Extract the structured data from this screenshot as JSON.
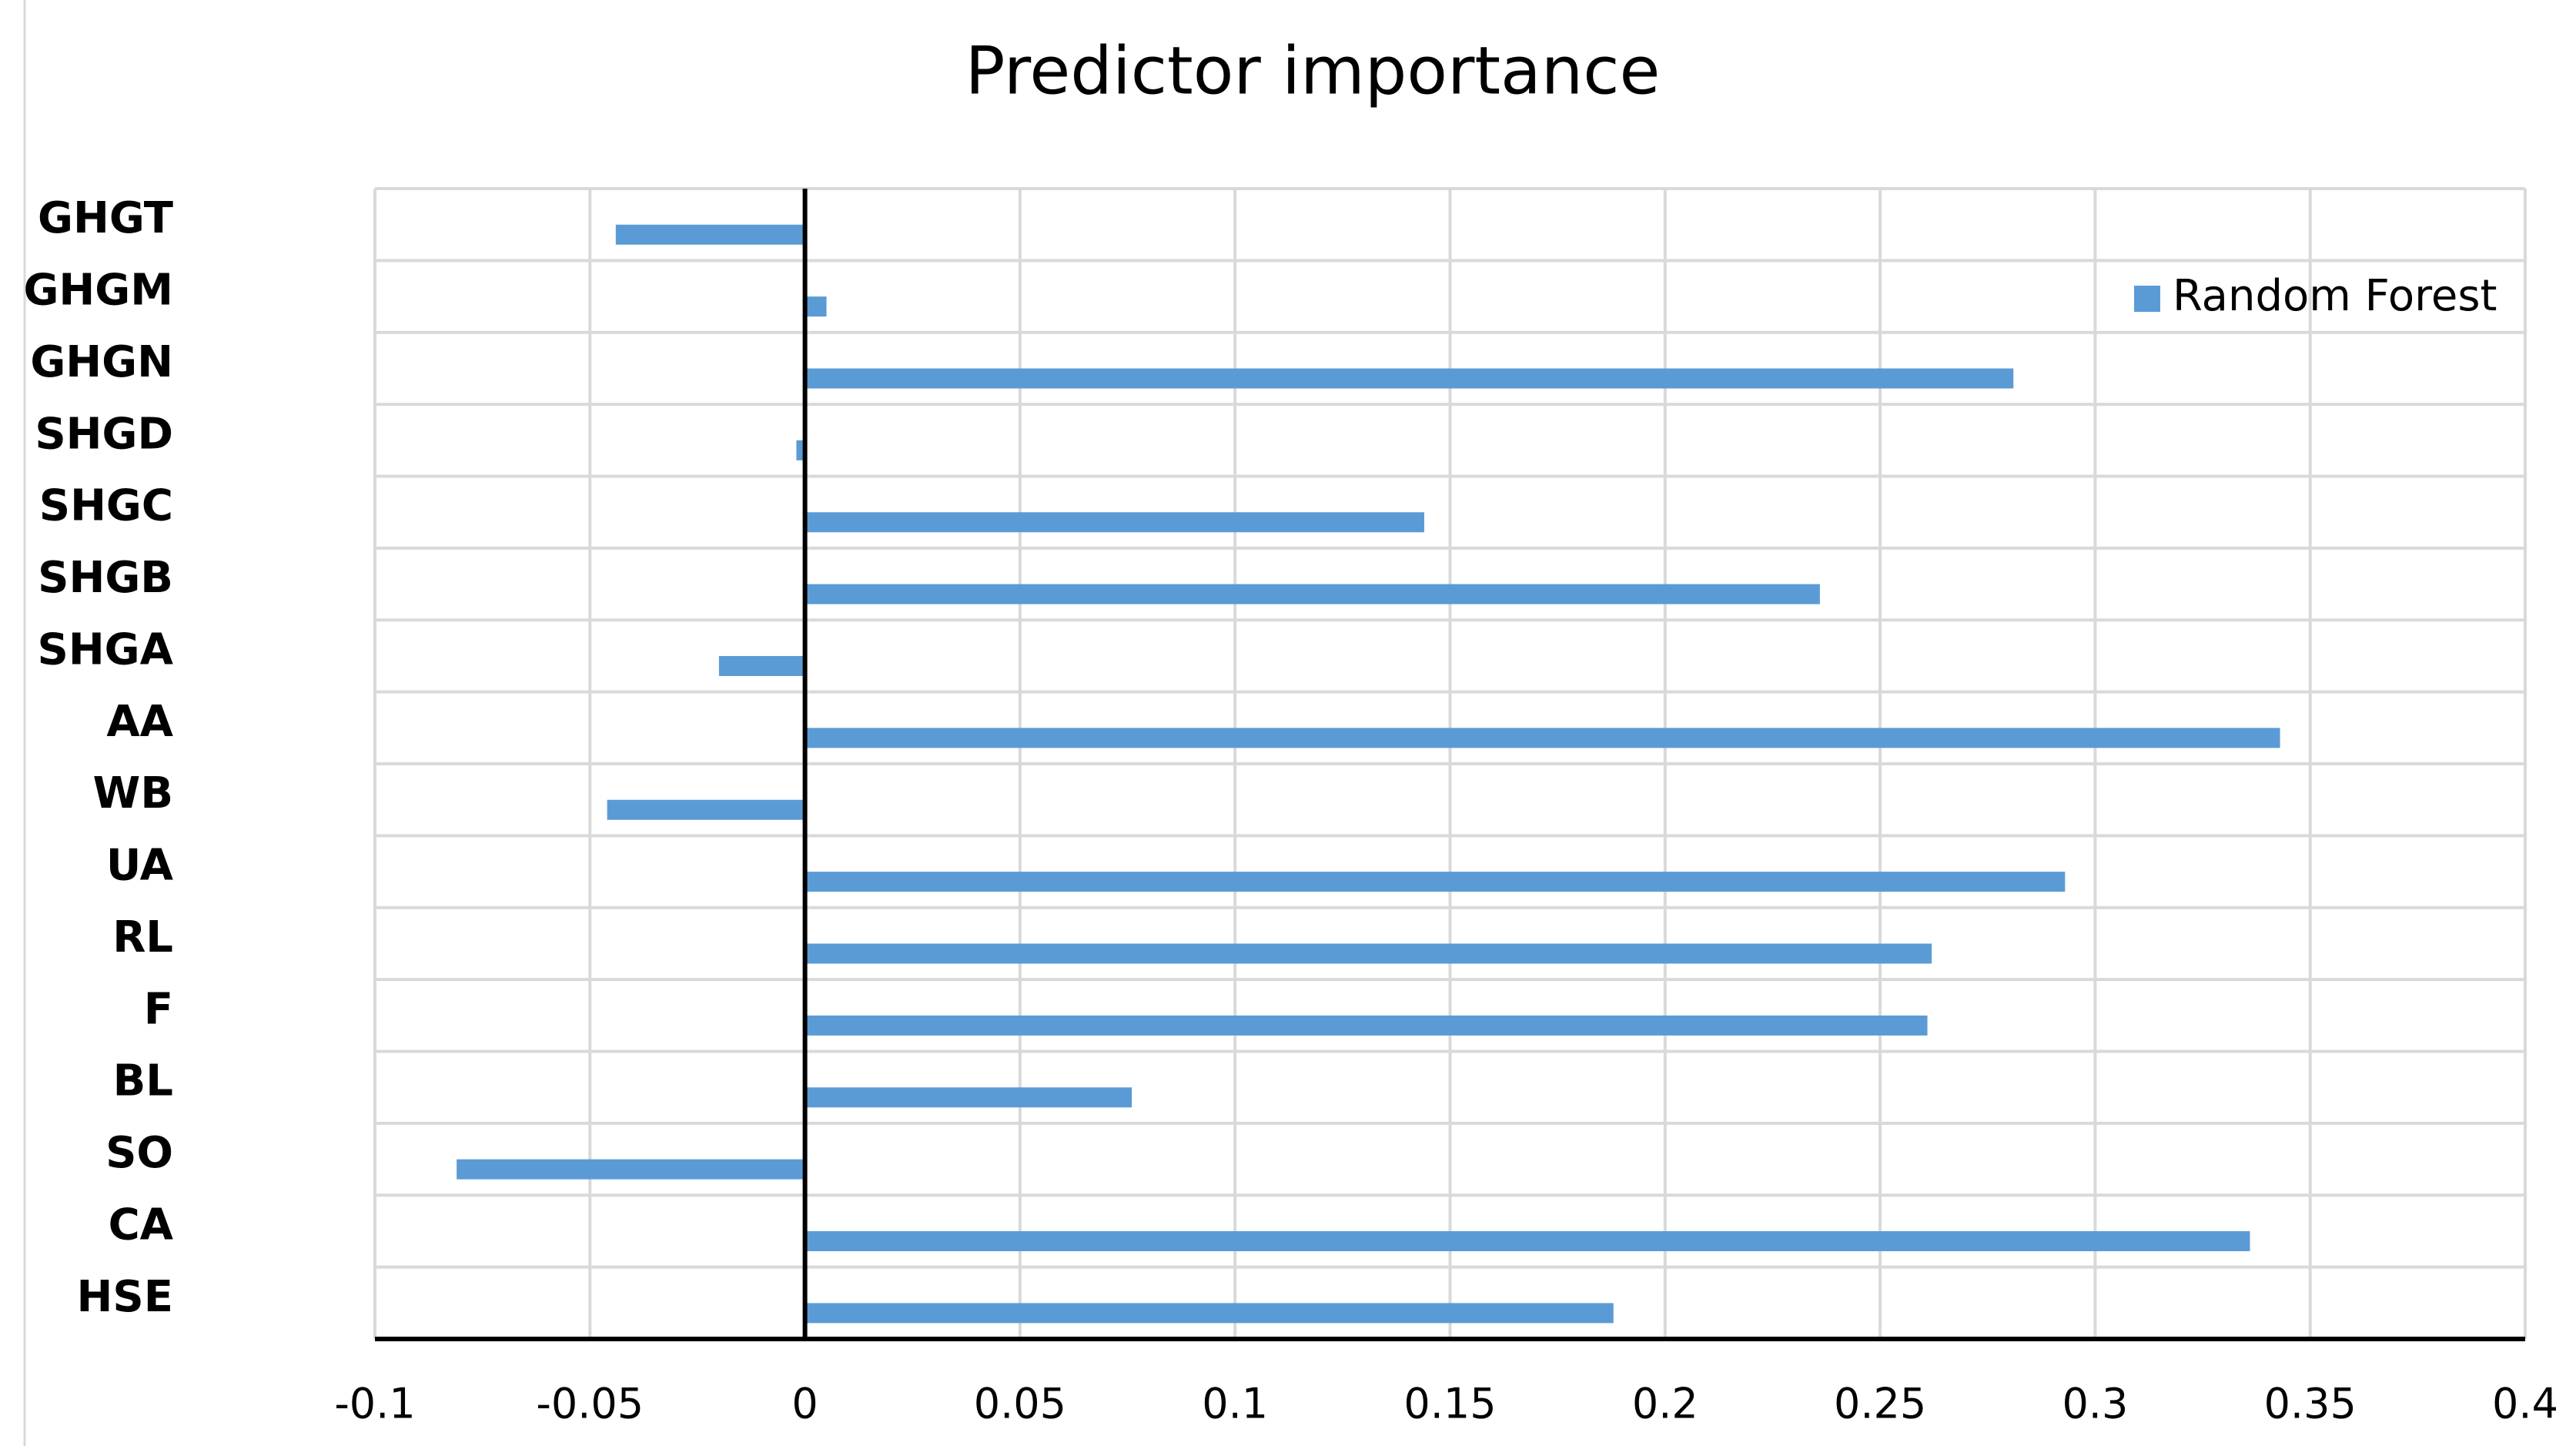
{
  "chart_data": {
    "type": "bar",
    "orientation": "horizontal",
    "title": "Predictor importance",
    "categories": [
      "GHGT",
      "GHGM",
      "GHGN",
      "SHGD",
      "SHGC",
      "SHGB",
      "SHGA",
      "AA",
      "WB",
      "UA",
      "RL",
      "F",
      "BL",
      "SO",
      "CA",
      "HSE"
    ],
    "series": [
      {
        "name": "Random Forest",
        "color": "#5b9bd5",
        "values": [
          -0.044,
          0.005,
          0.281,
          -0.002,
          0.144,
          0.236,
          -0.02,
          0.343,
          -0.046,
          0.293,
          0.262,
          0.261,
          0.076,
          -0.081,
          0.336,
          0.188
        ]
      }
    ],
    "xlim": [
      -0.1,
      0.4
    ],
    "xticks": [
      -0.1,
      -0.05,
      0,
      0.05,
      0.1,
      0.15,
      0.2,
      0.25,
      0.3,
      0.35,
      0.4
    ],
    "grid": true,
    "legend": "upper right"
  }
}
